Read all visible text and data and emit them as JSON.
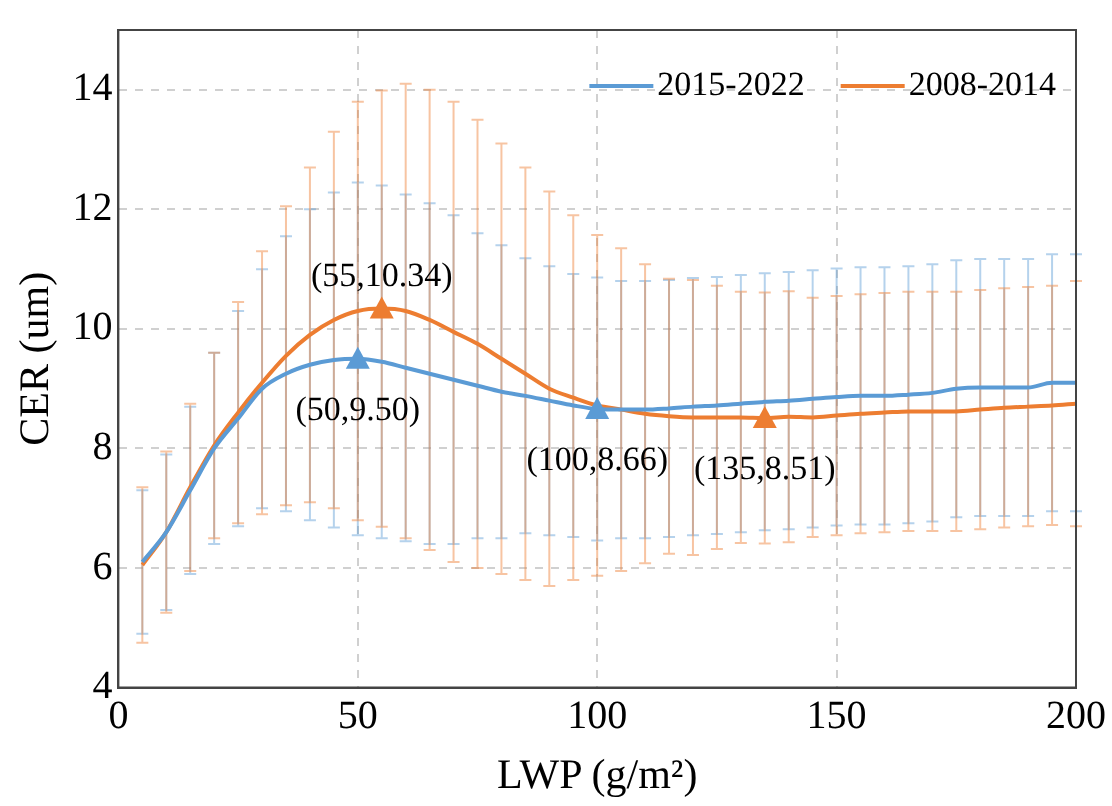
{
  "chart_data": {
    "type": "line",
    "xlabel": "LWP (g/m²)",
    "ylabel": "CER (um)",
    "x": [
      5,
      10,
      15,
      20,
      25,
      30,
      35,
      40,
      45,
      50,
      55,
      60,
      65,
      70,
      75,
      80,
      85,
      90,
      95,
      100,
      105,
      110,
      115,
      120,
      125,
      130,
      135,
      140,
      145,
      150,
      155,
      160,
      165,
      170,
      175,
      180,
      185,
      190,
      195,
      200
    ],
    "series": [
      {
        "name": "2015-2022",
        "color": "#5b9bd5",
        "values": [
          6.1,
          6.6,
          7.3,
          8.0,
          8.5,
          9.0,
          9.25,
          9.4,
          9.48,
          9.5,
          9.45,
          9.35,
          9.25,
          9.15,
          9.05,
          8.95,
          8.88,
          8.8,
          8.72,
          8.66,
          8.65,
          8.65,
          8.67,
          8.7,
          8.72,
          8.75,
          8.78,
          8.8,
          8.83,
          8.86,
          8.88,
          8.88,
          8.9,
          8.93,
          9.0,
          9.02,
          9.02,
          9.02,
          9.1,
          9.1
        ],
        "errors": [
          1.2,
          1.3,
          1.4,
          1.6,
          1.8,
          2.0,
          2.3,
          2.6,
          2.8,
          2.95,
          2.95,
          2.9,
          2.85,
          2.75,
          2.55,
          2.45,
          2.3,
          2.25,
          2.2,
          2.2,
          2.15,
          2.15,
          2.15,
          2.15,
          2.15,
          2.15,
          2.15,
          2.15,
          2.15,
          2.15,
          2.15,
          2.15,
          2.15,
          2.15,
          2.15,
          2.15,
          2.15,
          2.15,
          2.15,
          2.15
        ]
      },
      {
        "name": "2008-2014",
        "color": "#ed7d31",
        "values": [
          6.05,
          6.6,
          7.35,
          8.05,
          8.6,
          9.1,
          9.55,
          9.9,
          10.15,
          10.3,
          10.34,
          10.3,
          10.15,
          9.95,
          9.75,
          9.5,
          9.25,
          9.0,
          8.85,
          8.72,
          8.65,
          8.58,
          8.54,
          8.52,
          8.52,
          8.52,
          8.51,
          8.53,
          8.52,
          8.55,
          8.58,
          8.6,
          8.62,
          8.62,
          8.62,
          8.65,
          8.68,
          8.7,
          8.72,
          8.75
        ],
        "errors": [
          1.3,
          1.35,
          1.4,
          1.55,
          1.85,
          2.2,
          2.5,
          2.8,
          3.15,
          3.5,
          3.65,
          3.8,
          3.85,
          3.85,
          3.75,
          3.6,
          3.45,
          3.3,
          3.05,
          2.85,
          2.7,
          2.5,
          2.3,
          2.3,
          2.2,
          2.1,
          2.1,
          2.1,
          2.0,
          2.0,
          2.0,
          2.0,
          2.0,
          2.0,
          2.0,
          2.0,
          2.0,
          2.0,
          2.0,
          2.05
        ]
      }
    ],
    "annotations": [
      {
        "text": "(55,10.34)",
        "x": 55,
        "y": 10.34
      },
      {
        "text": "(50,9.50)",
        "x": 50,
        "y": 9.5
      },
      {
        "text": "(100,8.66)",
        "x": 100,
        "y": 8.66
      },
      {
        "text": "(135,8.51)",
        "x": 135,
        "y": 8.51
      }
    ],
    "xlim": [
      0,
      200
    ],
    "xticks": [
      0,
      50,
      100,
      150,
      200
    ],
    "ylim": [
      4,
      15
    ],
    "yticks": [
      4,
      6,
      8,
      10,
      12,
      14
    ],
    "grid": true,
    "legend": "top right",
    "marker": "none",
    "line_style": "solid"
  }
}
